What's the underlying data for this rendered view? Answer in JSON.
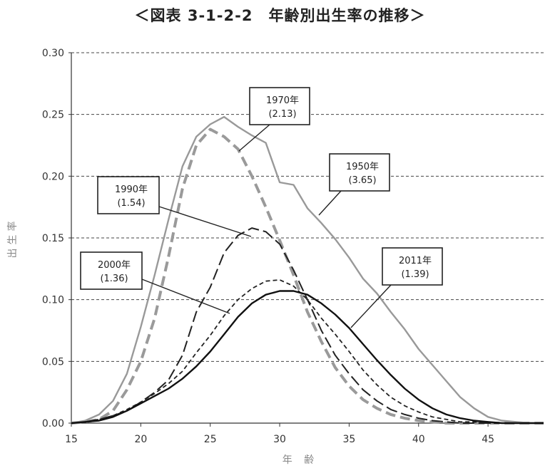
{
  "title": "＜図表 3-1-2-2　年齢別出生率の推移＞",
  "chart_data": {
    "type": "line",
    "title": "＜図表 3-1-2-2　年齢別出生率の推移＞",
    "xlabel": "年 齢",
    "ylabel": "出生率",
    "xlim": [
      15,
      49
    ],
    "ylim": [
      0,
      0.3
    ],
    "x_ticks": [
      "15",
      "20",
      "25",
      "30",
      "35",
      "40",
      "45"
    ],
    "x_tick_values": [
      15,
      20,
      25,
      30,
      35,
      40,
      45
    ],
    "y_ticks": [
      "0.00",
      "0.05",
      "0.10",
      "0.15",
      "0.20",
      "0.25",
      "0.30"
    ],
    "y_tick_values": [
      0,
      0.05,
      0.1,
      0.15,
      0.2,
      0.25,
      0.3
    ],
    "grid": "horizontal-dashed",
    "series": [
      {
        "name": "1950年（3.65）",
        "label_line1": "1950年",
        "label_line2": "(3.65)",
        "color": "#999999",
        "style": "solid",
        "points": [
          [
            15,
            0
          ],
          [
            16,
            0.002
          ],
          [
            17,
            0.007
          ],
          [
            18,
            0.018
          ],
          [
            19,
            0.04
          ],
          [
            20,
            0.078
          ],
          [
            21,
            0.12
          ],
          [
            22,
            0.165
          ],
          [
            23,
            0.208
          ],
          [
            24,
            0.232
          ],
          [
            25,
            0.242
          ],
          [
            26,
            0.248
          ],
          [
            27,
            0.24
          ],
          [
            28,
            0.233
          ],
          [
            29,
            0.227
          ],
          [
            30,
            0.195
          ],
          [
            31,
            0.193
          ],
          [
            32,
            0.174
          ],
          [
            33,
            0.162
          ],
          [
            34,
            0.149
          ],
          [
            35,
            0.134
          ],
          [
            36,
            0.117
          ],
          [
            37,
            0.105
          ],
          [
            38,
            0.09
          ],
          [
            39,
            0.076
          ],
          [
            40,
            0.06
          ],
          [
            41,
            0.047
          ],
          [
            42,
            0.034
          ],
          [
            43,
            0.021
          ],
          [
            44,
            0.012
          ],
          [
            45,
            0.005
          ],
          [
            46,
            0.002
          ],
          [
            47,
            0.001
          ],
          [
            48,
            0
          ],
          [
            49,
            0
          ]
        ]
      },
      {
        "name": "1970年（2.13）",
        "label_line1": "1970年",
        "label_line2": "(2.13)",
        "color": "#9a9a9a",
        "style": "thick-dash",
        "points": [
          [
            15,
            0
          ],
          [
            16,
            0.001
          ],
          [
            17,
            0.003
          ],
          [
            18,
            0.01
          ],
          [
            19,
            0.027
          ],
          [
            20,
            0.05
          ],
          [
            21,
            0.085
          ],
          [
            22,
            0.135
          ],
          [
            23,
            0.19
          ],
          [
            24,
            0.225
          ],
          [
            25,
            0.238
          ],
          [
            26,
            0.232
          ],
          [
            27,
            0.222
          ],
          [
            28,
            0.2
          ],
          [
            29,
            0.175
          ],
          [
            30,
            0.148
          ],
          [
            31,
            0.12
          ],
          [
            32,
            0.09
          ],
          [
            33,
            0.066
          ],
          [
            34,
            0.045
          ],
          [
            35,
            0.03
          ],
          [
            36,
            0.019
          ],
          [
            37,
            0.012
          ],
          [
            38,
            0.007
          ],
          [
            39,
            0.004
          ],
          [
            40,
            0.002
          ],
          [
            41,
            0.001
          ],
          [
            42,
            0
          ],
          [
            49,
            0
          ]
        ]
      },
      {
        "name": "1990年（1.54）",
        "label_line1": "1990年",
        "label_line2": "(1.54)",
        "color": "#222222",
        "style": "long-dash",
        "points": [
          [
            15,
            0
          ],
          [
            16,
            0.001
          ],
          [
            17,
            0.003
          ],
          [
            18,
            0.006
          ],
          [
            19,
            0.01
          ],
          [
            20,
            0.017
          ],
          [
            21,
            0.025
          ],
          [
            22,
            0.035
          ],
          [
            23,
            0.055
          ],
          [
            24,
            0.09
          ],
          [
            25,
            0.11
          ],
          [
            26,
            0.138
          ],
          [
            27,
            0.152
          ],
          [
            28,
            0.158
          ],
          [
            29,
            0.155
          ],
          [
            30,
            0.145
          ],
          [
            31,
            0.124
          ],
          [
            32,
            0.1
          ],
          [
            33,
            0.075
          ],
          [
            34,
            0.055
          ],
          [
            35,
            0.04
          ],
          [
            36,
            0.027
          ],
          [
            37,
            0.018
          ],
          [
            38,
            0.011
          ],
          [
            39,
            0.007
          ],
          [
            40,
            0.004
          ],
          [
            41,
            0.002
          ],
          [
            42,
            0.001
          ],
          [
            43,
            0
          ],
          [
            49,
            0
          ]
        ]
      },
      {
        "name": "2000年（1.36）",
        "label_line1": "2000年",
        "label_line2": "(1.36)",
        "color": "#222222",
        "style": "short-dash",
        "points": [
          [
            15,
            0
          ],
          [
            16,
            0.001
          ],
          [
            17,
            0.003
          ],
          [
            18,
            0.006
          ],
          [
            19,
            0.011
          ],
          [
            20,
            0.017
          ],
          [
            21,
            0.024
          ],
          [
            22,
            0.032
          ],
          [
            23,
            0.042
          ],
          [
            24,
            0.057
          ],
          [
            25,
            0.071
          ],
          [
            26,
            0.087
          ],
          [
            27,
            0.1
          ],
          [
            28,
            0.109
          ],
          [
            29,
            0.115
          ],
          [
            30,
            0.116
          ],
          [
            31,
            0.111
          ],
          [
            32,
            0.1
          ],
          [
            33,
            0.085
          ],
          [
            34,
            0.072
          ],
          [
            35,
            0.058
          ],
          [
            36,
            0.043
          ],
          [
            37,
            0.031
          ],
          [
            38,
            0.021
          ],
          [
            39,
            0.014
          ],
          [
            40,
            0.009
          ],
          [
            41,
            0.005
          ],
          [
            42,
            0.003
          ],
          [
            43,
            0.001
          ],
          [
            44,
            0.001
          ],
          [
            45,
            0
          ],
          [
            49,
            0
          ]
        ]
      },
      {
        "name": "2011年（1.39）",
        "label_line1": "2011年",
        "label_line2": "(1.39)",
        "color": "#111111",
        "style": "solid",
        "points": [
          [
            15,
            0
          ],
          [
            16,
            0.001
          ],
          [
            17,
            0.002
          ],
          [
            18,
            0.005
          ],
          [
            19,
            0.01
          ],
          [
            20,
            0.016
          ],
          [
            21,
            0.022
          ],
          [
            22,
            0.028
          ],
          [
            23,
            0.036
          ],
          [
            24,
            0.046
          ],
          [
            25,
            0.058
          ],
          [
            26,
            0.072
          ],
          [
            27,
            0.086
          ],
          [
            28,
            0.097
          ],
          [
            29,
            0.104
          ],
          [
            30,
            0.107
          ],
          [
            31,
            0.107
          ],
          [
            32,
            0.104
          ],
          [
            33,
            0.097
          ],
          [
            34,
            0.088
          ],
          [
            35,
            0.077
          ],
          [
            36,
            0.064
          ],
          [
            37,
            0.051
          ],
          [
            38,
            0.039
          ],
          [
            39,
            0.028
          ],
          [
            40,
            0.019
          ],
          [
            41,
            0.012
          ],
          [
            42,
            0.007
          ],
          [
            43,
            0.004
          ],
          [
            44,
            0.002
          ],
          [
            45,
            0.001
          ],
          [
            46,
            0
          ],
          [
            49,
            0
          ]
        ]
      }
    ]
  }
}
